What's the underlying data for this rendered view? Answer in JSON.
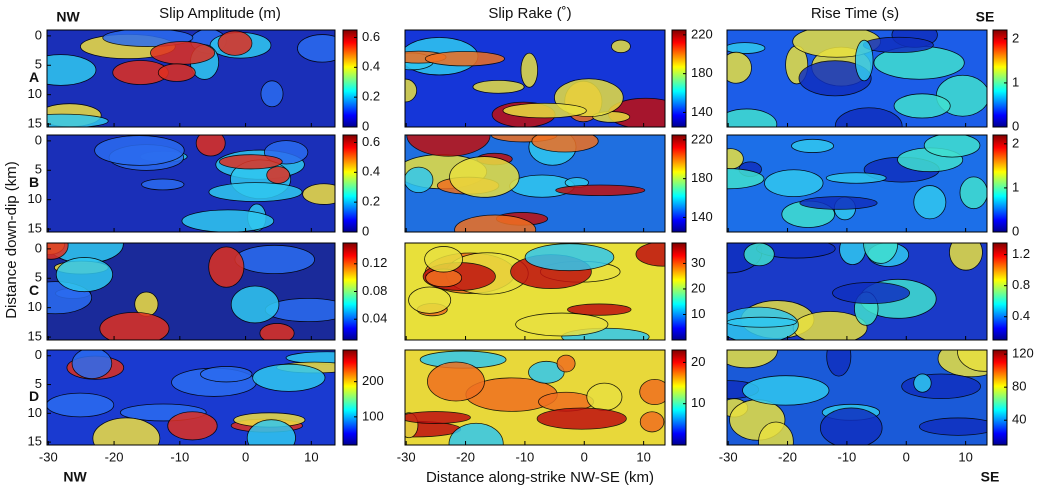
{
  "column_titles": [
    "Slip Amplitude (m)",
    "Slip Rake (˚)",
    "Rise Time (s)"
  ],
  "row_labels": [
    "A",
    "B",
    "C",
    "D"
  ],
  "corner_labels": {
    "top_left": "NW",
    "top_right": "SE",
    "bottom_left": "NW",
    "bottom_right": "SE"
  },
  "y_axis_label": "Distance down-dip (km)",
  "x_axis_label": "Distance along-strike NW-SE (km)",
  "xlim": [
    -30.2,
    13.6
  ],
  "xticks": [
    -30,
    -20,
    -10,
    0,
    10
  ],
  "ylim": [
    -1,
    15.5
  ],
  "yticks": [
    0,
    5,
    10,
    15
  ],
  "colorbars": [
    [
      {
        "lim": [
          0,
          0.65
        ],
        "ticks": [
          0,
          0.2,
          0.4,
          0.6
        ]
      },
      {
        "lim": [
          125,
          225
        ],
        "ticks": [
          140,
          180,
          220
        ]
      },
      {
        "lim": [
          0,
          2.2
        ],
        "ticks": [
          0,
          1,
          2
        ]
      }
    ],
    [
      {
        "lim": [
          0,
          0.65
        ],
        "ticks": [
          0,
          0.2,
          0.4,
          0.6
        ]
      },
      {
        "lim": [
          125,
          225
        ],
        "ticks": [
          140,
          180,
          220
        ]
      },
      {
        "lim": [
          0,
          2.2
        ],
        "ticks": [
          0,
          1,
          2
        ]
      }
    ],
    [
      {
        "lim": [
          0.01,
          0.15
        ],
        "ticks": [
          0.04,
          0.08,
          0.12
        ]
      },
      {
        "lim": [
          0,
          38
        ],
        "ticks": [
          10,
          20,
          30
        ]
      },
      {
        "lim": [
          0.1,
          1.35
        ],
        "ticks": [
          0.4,
          0.8,
          1.2
        ]
      }
    ],
    [
      {
        "lim": [
          20,
          290
        ],
        "ticks": [
          100,
          200
        ]
      },
      {
        "lim": [
          0,
          23
        ],
        "ticks": [
          10,
          20
        ]
      },
      {
        "lim": [
          10,
          125
        ],
        "ticks": [
          40,
          80,
          120
        ]
      }
    ]
  ]
}
